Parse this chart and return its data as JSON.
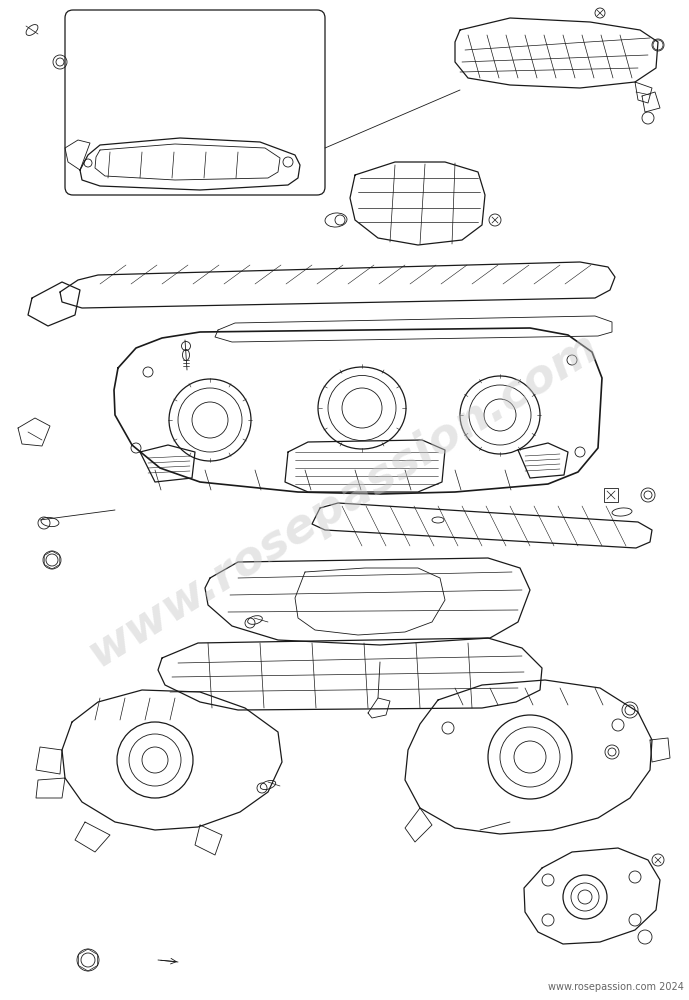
{
  "background_color": "#ffffff",
  "line_color": "#1a1a1a",
  "watermark_text": "www.rosepassion.com",
  "watermark_color": "#c8c8c8",
  "copyright_text": "www.rosepassion.com 2024",
  "copyright_color": "#666666",
  "copyright_fontsize": 7,
  "watermark_fontsize": 34,
  "fig_width": 6.89,
  "fig_height": 10.0,
  "dpi": 100
}
